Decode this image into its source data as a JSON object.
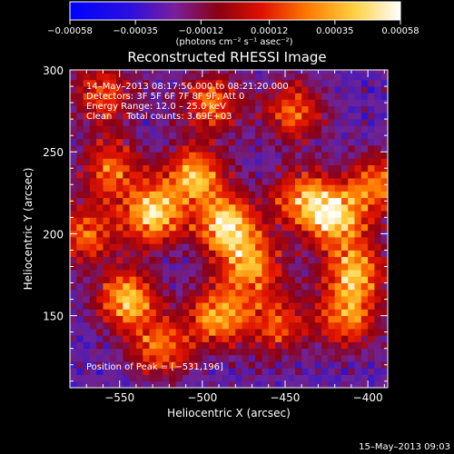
{
  "chart_data": {
    "type": "heatmap",
    "title": "Reconstructed RHESSI Image",
    "xlabel": "Heliocentric X (arcsec)",
    "ylabel": "Heliocentric Y (arcsec)",
    "xlim": [
      -580,
      -388
    ],
    "ylim": [
      106,
      300
    ],
    "x_ticks": [
      "−550",
      "−500",
      "−450",
      "−400"
    ],
    "x_tick_values": [
      -550,
      -500,
      -450,
      -400
    ],
    "y_ticks": [
      "150",
      "200",
      "250",
      "300"
    ],
    "y_tick_values": [
      150,
      200,
      250,
      300
    ],
    "colorbar": {
      "ticks": [
        "−0.00058",
        "−0.00035",
        "−0.00012",
        "0.00012",
        "0.00035",
        "0.00058"
      ],
      "tick_values": [
        -0.00058,
        -0.00035,
        -0.00012,
        0.00012,
        0.00035,
        0.00058
      ],
      "range": [
        -0.00058,
        0.00058
      ],
      "unit_label": "(photons cm⁻² s⁻¹ asec⁻²)",
      "colors": [
        "#0000ff",
        "#6a1fa0",
        "#8b0000",
        "#ff2000",
        "#ff9900",
        "#ffff80",
        "#ffffff"
      ]
    },
    "annotations": {
      "time_range": "14–May–2013 08:17:56.000 to 08:21:20.000",
      "detectors": "Detectors: 3F 5F 6F 7F 8F 9F, Att 0",
      "energy_range": "Energy Range: 12.0 – 25.0 keV",
      "clean_counts": "Clean     Total counts: 3.69E+03",
      "peak_position": "Position of Peak = [−531,196]"
    },
    "peak": {
      "x": -531,
      "y": 196
    },
    "sources": [
      {
        "x": -530,
        "y": 212,
        "intensity": 0.00052
      },
      {
        "x": -545,
        "y": 160,
        "intensity": 0.00046
      },
      {
        "x": -485,
        "y": 205,
        "intensity": 0.00055
      },
      {
        "x": -470,
        "y": 180,
        "intensity": 0.00038
      },
      {
        "x": -490,
        "y": 150,
        "intensity": 0.00042
      },
      {
        "x": -505,
        "y": 235,
        "intensity": 0.00044
      },
      {
        "x": -555,
        "y": 240,
        "intensity": 0.0003
      },
      {
        "x": -420,
        "y": 210,
        "intensity": 0.00048
      },
      {
        "x": -408,
        "y": 178,
        "intensity": 0.0004
      },
      {
        "x": -412,
        "y": 150,
        "intensity": 0.00036
      },
      {
        "x": -440,
        "y": 222,
        "intensity": 0.00032
      },
      {
        "x": -445,
        "y": 275,
        "intensity": 0.00028
      },
      {
        "x": -495,
        "y": 280,
        "intensity": 0.0003
      },
      {
        "x": -560,
        "y": 285,
        "intensity": 0.00026
      },
      {
        "x": -455,
        "y": 145,
        "intensity": 0.00024
      },
      {
        "x": -525,
        "y": 130,
        "intensity": 0.0003
      },
      {
        "x": -395,
        "y": 230,
        "intensity": 0.00032
      },
      {
        "x": -570,
        "y": 200,
        "intensity": 0.00028
      }
    ]
  },
  "footer": {
    "timestamp": "15–May–2013 09:03"
  }
}
